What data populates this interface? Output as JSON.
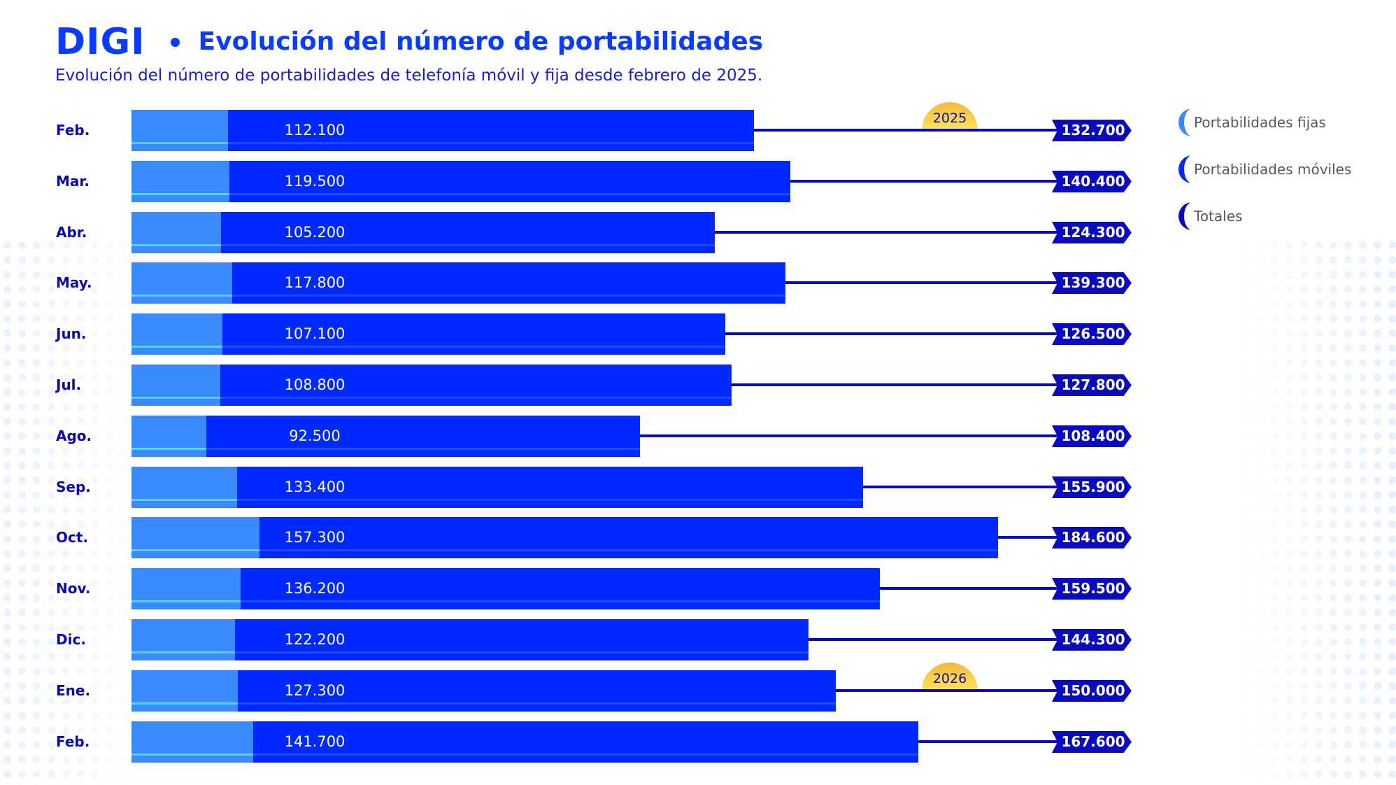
{
  "header": {
    "logo": "DIGI",
    "title": "Evolución del número de portabilidades",
    "subtitle": "Evolución del número de portabilidades de telefonía móvil y fija desde febrero de 2025."
  },
  "legend": {
    "items": [
      {
        "label": "Portabilidades fijas",
        "color": "#3a8aff"
      },
      {
        "label": "Portabilidades móviles",
        "color": "#0029ff"
      },
      {
        "label": "Totales",
        "color": "#0a0abf"
      }
    ]
  },
  "year_badges": [
    {
      "label": "2025",
      "row": 0
    },
    {
      "label": "2026",
      "row": 11
    }
  ],
  "rows": [
    {
      "month": "Feb.",
      "mobile": "112.100",
      "total": "132.700"
    },
    {
      "month": "Mar.",
      "mobile": "119.500",
      "total": "140.400"
    },
    {
      "month": "Abr.",
      "mobile": "105.200",
      "total": "124.300"
    },
    {
      "month": "May.",
      "mobile": "117.800",
      "total": "139.300"
    },
    {
      "month": "Jun.",
      "mobile": "107.100",
      "total": "126.500"
    },
    {
      "month": "Jul.",
      "mobile": "108.800",
      "total": "127.800"
    },
    {
      "month": "Ago.",
      "mobile": "92.500",
      "total": "108.400"
    },
    {
      "month": "Sep.",
      "mobile": "133.400",
      "total": "155.900"
    },
    {
      "month": "Oct.",
      "mobile": "157.300",
      "total": "184.600"
    },
    {
      "month": "Nov.",
      "mobile": "136.200",
      "total": "159.500"
    },
    {
      "month": "Dic.",
      "mobile": "122.200",
      "total": "144.300"
    },
    {
      "month": "Ene.",
      "mobile": "127.300",
      "total": "150.000"
    },
    {
      "month": "Feb.",
      "mobile": "141.700",
      "total": "167.600"
    }
  ],
  "colors": {
    "fixed": "#3a8aff",
    "mobile": "#0029ff",
    "total": "#0a0abf",
    "title": "#0a3cff",
    "year_badge": "#fde45a"
  },
  "chart_data": {
    "type": "bar",
    "orientation": "horizontal",
    "stacked": true,
    "title": "Evolución del número de portabilidades",
    "subtitle": "Evolución del número de portabilidades de telefonía móvil y fija desde febrero de 2025.",
    "categories": [
      "Feb. 2025",
      "Mar.",
      "Abr.",
      "May.",
      "Jun.",
      "Jul.",
      "Ago.",
      "Sep.",
      "Oct.",
      "Nov.",
      "Dic.",
      "Ene. 2026",
      "Feb."
    ],
    "series": [
      {
        "name": "Portabilidades fijas",
        "values": [
          20600,
          20900,
          19100,
          21500,
          19400,
          19000,
          15900,
          22500,
          27300,
          23300,
          22100,
          22700,
          25900
        ]
      },
      {
        "name": "Portabilidades móviles",
        "values": [
          112100,
          119500,
          105200,
          117800,
          107100,
          108800,
          92500,
          133400,
          157300,
          136200,
          122200,
          127300,
          141700
        ]
      },
      {
        "name": "Totales",
        "values": [
          132700,
          140400,
          124300,
          139300,
          126500,
          127800,
          108400,
          155900,
          184600,
          159500,
          144300,
          150000,
          167600
        ]
      }
    ],
    "annotations": [
      "2025",
      "2026"
    ],
    "legend_position": "right",
    "grid": false,
    "xlabel": "",
    "ylabel": ""
  }
}
